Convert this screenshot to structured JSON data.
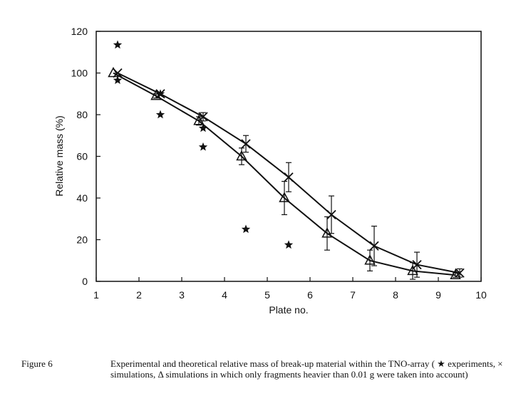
{
  "chart_data": {
    "type": "scatter",
    "title": "",
    "xlabel": "Plate no.",
    "ylabel": "Relative mass (%)",
    "xlim": [
      1,
      10
    ],
    "ylim": [
      0,
      120
    ],
    "x_ticks": [
      "1",
      "2",
      "3",
      "4",
      "5",
      "6",
      "7",
      "8",
      "9",
      "10"
    ],
    "y_ticks": [
      "0",
      "20",
      "40",
      "60",
      "80",
      "100",
      "120"
    ],
    "grid": false,
    "series": [
      {
        "name": "experiments",
        "marker": "star",
        "line": false,
        "points": [
          {
            "x": 1.5,
            "y": 113.5
          },
          {
            "x": 1.5,
            "y": 96.5
          },
          {
            "x": 2.5,
            "y": 90
          },
          {
            "x": 2.5,
            "y": 80
          },
          {
            "x": 3.5,
            "y": 73.5
          },
          {
            "x": 3.5,
            "y": 64.5
          },
          {
            "x": 4.5,
            "y": 25
          },
          {
            "x": 5.5,
            "y": 17.5
          }
        ]
      },
      {
        "name": "simulations",
        "marker": "cross",
        "line": true,
        "points": [
          {
            "x": 1.5,
            "y": 100,
            "err": 0
          },
          {
            "x": 2.5,
            "y": 90,
            "err": 0
          },
          {
            "x": 3.5,
            "y": 79,
            "err": 2
          },
          {
            "x": 4.5,
            "y": 66,
            "err": 4
          },
          {
            "x": 5.5,
            "y": 50,
            "err": 7
          },
          {
            "x": 6.5,
            "y": 32,
            "err": 9
          },
          {
            "x": 7.5,
            "y": 17,
            "err": 9.5
          },
          {
            "x": 8.5,
            "y": 8,
            "err": 6
          },
          {
            "x": 9.5,
            "y": 4,
            "err": 2
          }
        ]
      },
      {
        "name": "simulations (fragments heavier than 0.01 g)",
        "marker": "triangle",
        "line": true,
        "points": [
          {
            "x": 1.4,
            "y": 100,
            "err": 0
          },
          {
            "x": 2.4,
            "y": 89,
            "err": 1
          },
          {
            "x": 3.4,
            "y": 77,
            "err": 2
          },
          {
            "x": 4.4,
            "y": 60,
            "err": 4
          },
          {
            "x": 5.4,
            "y": 40,
            "err": 8
          },
          {
            "x": 6.4,
            "y": 23,
            "err": 8
          },
          {
            "x": 7.4,
            "y": 10,
            "err": 5
          },
          {
            "x": 8.4,
            "y": 5,
            "err": 4
          },
          {
            "x": 9.4,
            "y": 3,
            "err": 1
          }
        ]
      }
    ]
  },
  "caption": {
    "label": "Figure 6",
    "text": "Experimental and theoretical relative mass of break-up material within the TNO-array ( ★ experiments, × simulations, Δ simulations in which only fragments heavier than 0.01 g were taken into account)"
  },
  "colors": {
    "ink": "#111111",
    "background": "#ffffff"
  }
}
